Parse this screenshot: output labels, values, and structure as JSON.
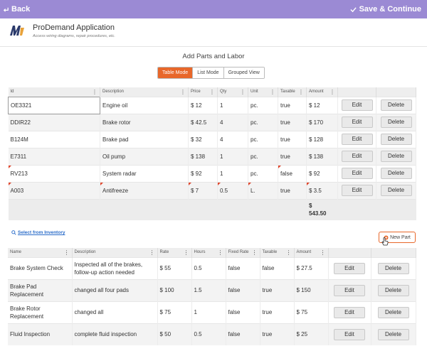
{
  "topbar": {
    "back_label": "Back",
    "save_label": "Save & Continue"
  },
  "app": {
    "title": "ProDemand Application",
    "subtitle": "Access wiring diagrams, repair procedures, etc."
  },
  "section_title": "Add Parts and Labor",
  "view_modes": [
    "Table Mode",
    "List Mode",
    "Grouped View"
  ],
  "parts": {
    "headers": [
      "Id",
      "Description",
      "Price",
      "Qty",
      "Unit",
      "Taxable",
      "Amount"
    ],
    "rows": [
      {
        "id": "OE3321",
        "description": "Engine oil",
        "price": "$ 12",
        "qty": "1",
        "unit": "pc.",
        "taxable": "true",
        "amount": "$ 12"
      },
      {
        "id": "DDIR22",
        "description": "Brake rotor",
        "price": "$ 42.5",
        "qty": "4",
        "unit": "pc.",
        "taxable": "true",
        "amount": "$ 170"
      },
      {
        "id": "B124M",
        "description": "Brake pad",
        "price": "$ 32",
        "qty": "4",
        "unit": "pc.",
        "taxable": "true",
        "amount": "$ 128"
      },
      {
        "id": "E7311",
        "description": "Oil pump",
        "price": "$ 138",
        "qty": "1",
        "unit": "pc.",
        "taxable": "true",
        "amount": "$ 138"
      },
      {
        "id": "RV213",
        "description": "System radar",
        "price": "$ 92",
        "qty": "1",
        "unit": "pc.",
        "taxable": "false",
        "amount": "$ 92"
      },
      {
        "id": "A003",
        "description": "Antifreeze",
        "price": "$ 7",
        "qty": "0.5",
        "unit": "L.",
        "taxable": "true",
        "amount": "$ 3.5"
      }
    ],
    "total_currency": "$",
    "total_value": "543.50"
  },
  "actions": {
    "edit": "Edit",
    "delete": "Delete"
  },
  "inventory_link": "Select from Inventory",
  "new_part_label": "New Part",
  "labor": {
    "headers": [
      "Name",
      "Description",
      "Rate",
      "Hours",
      "Fixed Rate",
      "Taxable",
      "Amount"
    ],
    "rows": [
      {
        "name": "Brake System Check",
        "description": "Inspected all of the brakes, follow-up action needed",
        "rate": "$ 55",
        "hours": "0.5",
        "fixed_rate": "false",
        "taxable": "false",
        "amount": "$ 27.5"
      },
      {
        "name": "Brake Pad Replacement",
        "description": "changed all four pads",
        "rate": "$ 100",
        "hours": "1.5",
        "fixed_rate": "false",
        "taxable": "true",
        "amount": "$ 150"
      },
      {
        "name": "Brake Rotor Replacement",
        "description": "changed all",
        "rate": "$ 75",
        "hours": "1",
        "fixed_rate": "false",
        "taxable": "true",
        "amount": "$ 75"
      },
      {
        "name": "Fluid Inspection",
        "description": "complete fluid inspection",
        "rate": "$ 50",
        "hours": "0.5",
        "fixed_rate": "false",
        "taxable": "true",
        "amount": "$ 25"
      }
    ]
  },
  "colors": {
    "topbar": "#9b8ad4",
    "accent": "#e8672a",
    "link": "#2a6cc9"
  },
  "icons": {
    "back": "back-arrow-icon",
    "save": "check-icon",
    "logo": "app-logo",
    "search": "search-icon",
    "add": "plus-circle-icon",
    "column_menu": "kebab-menu-icon"
  }
}
